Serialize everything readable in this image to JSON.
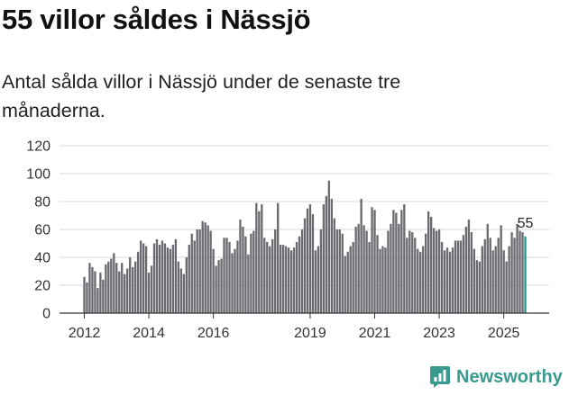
{
  "header": {
    "title": "55 villor såldes i Nässjö",
    "subtitle": "Antal sålda villor i Nässjö under de senaste tre månaderna."
  },
  "brand": {
    "name": "Newsworthy",
    "icon": "newsworthy-logo-icon",
    "color": "#3a9a90"
  },
  "colors": {
    "bar": "#6b6a70",
    "highlight": "#1a9a8c",
    "axis": "#333333"
  },
  "chart_data": {
    "type": "bar",
    "title": "55 villor såldes i Nässjö",
    "subtitle": "Antal sålda villor i Nässjö under de senaste tre månaderna.",
    "xlabel": "",
    "ylabel": "",
    "ylim": [
      0,
      120
    ],
    "yticks": [
      0,
      20,
      40,
      60,
      80,
      100,
      120
    ],
    "xticks": [
      "2012",
      "2014",
      "2016",
      "2019",
      "2021",
      "2023",
      "2025"
    ],
    "x_tick_months": [
      0,
      24,
      48,
      84,
      108,
      132,
      156
    ],
    "start": "2012-01",
    "interval": "month",
    "highlight_label": "55",
    "values": [
      26,
      22,
      36,
      33,
      30,
      18,
      29,
      24,
      35,
      37,
      39,
      43,
      36,
      30,
      36,
      28,
      32,
      40,
      33,
      37,
      44,
      52,
      50,
      48,
      29,
      34,
      50,
      53,
      49,
      52,
      50,
      47,
      46,
      49,
      53,
      37,
      32,
      28,
      40,
      49,
      57,
      52,
      60,
      60,
      66,
      65,
      63,
      59,
      46,
      34,
      38,
      39,
      54,
      54,
      51,
      43,
      46,
      52,
      67,
      62,
      55,
      42,
      57,
      59,
      79,
      73,
      78,
      54,
      51,
      48,
      53,
      60,
      79,
      49,
      49,
      48,
      47,
      45,
      47,
      51,
      55,
      60,
      68,
      75,
      78,
      71,
      45,
      48,
      60,
      78,
      84,
      95,
      82,
      68,
      60,
      60,
      57,
      41,
      44,
      48,
      51,
      62,
      64,
      82,
      63,
      59,
      51,
      76,
      74,
      56,
      46,
      48,
      47,
      59,
      64,
      74,
      72,
      64,
      74,
      78,
      54,
      59,
      58,
      54,
      46,
      44,
      48,
      57,
      73,
      69,
      61,
      59,
      60,
      51,
      45,
      47,
      44,
      47,
      52,
      52,
      52,
      56,
      62,
      67,
      58,
      46,
      38,
      37,
      48,
      53,
      64,
      54,
      45,
      48,
      54,
      63,
      45,
      37,
      48,
      58,
      54,
      64,
      59,
      58,
      55
    ]
  }
}
